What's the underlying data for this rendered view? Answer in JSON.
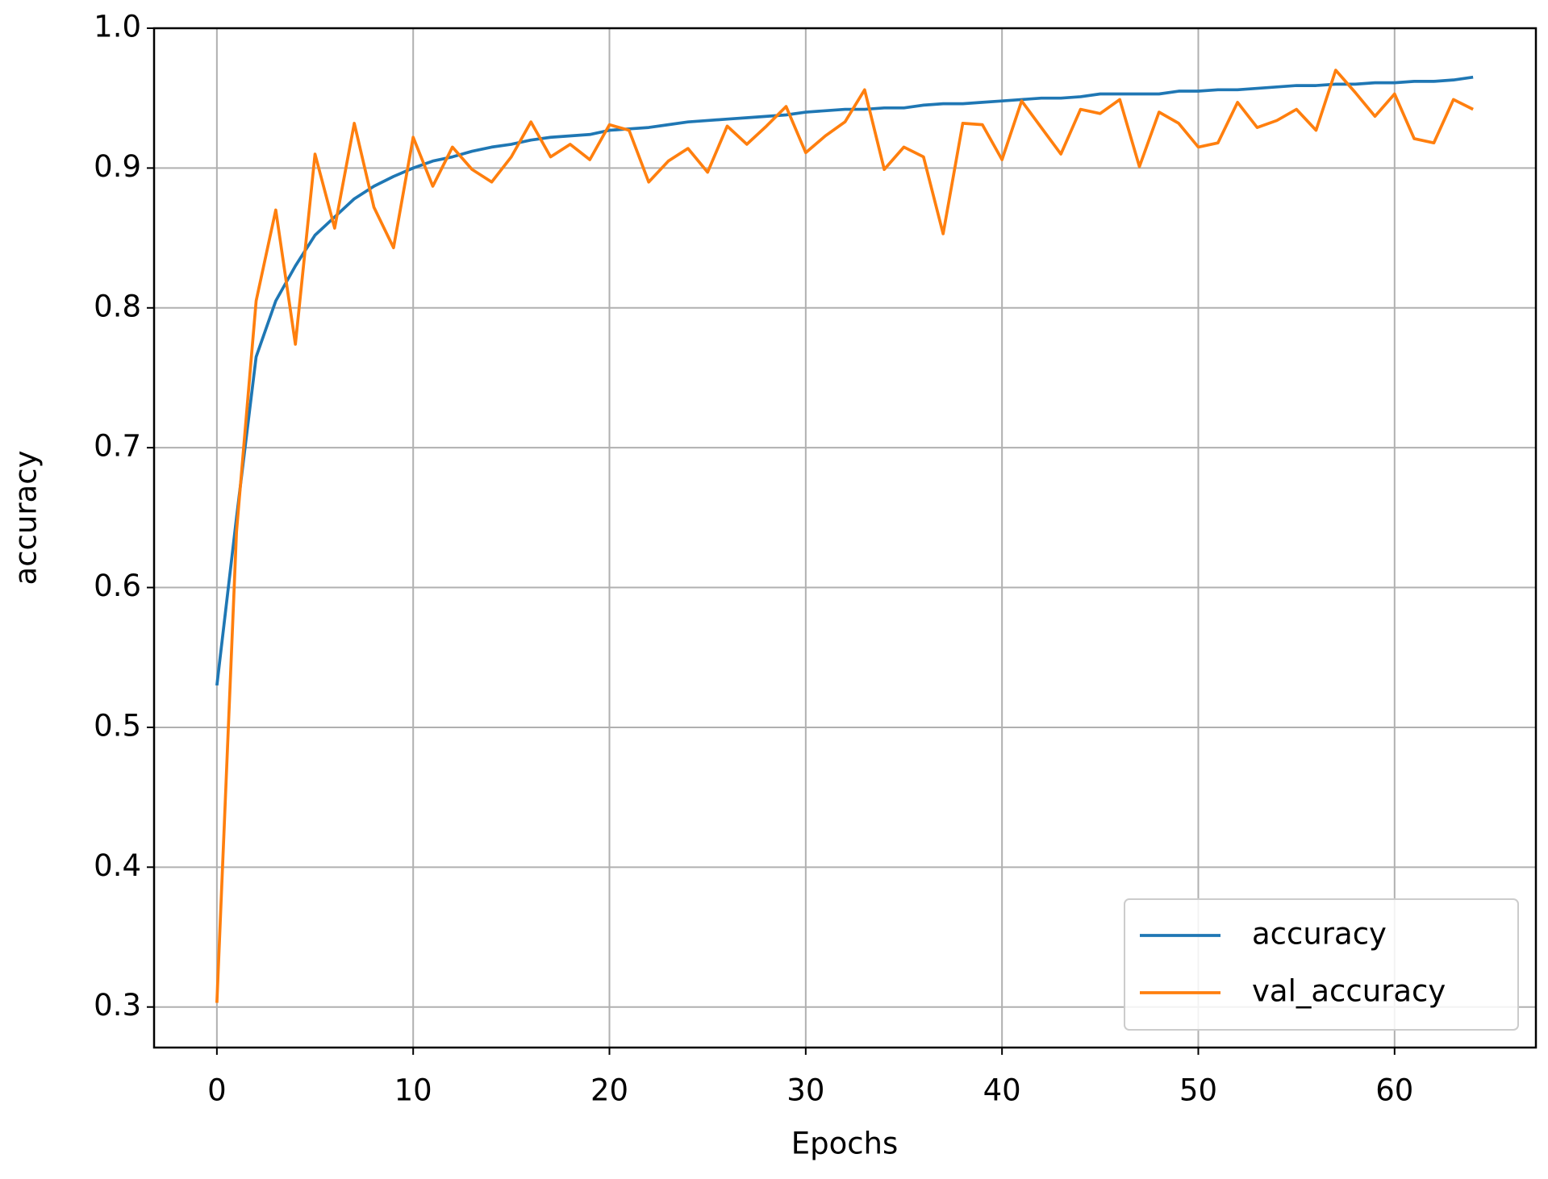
{
  "chart_data": {
    "type": "line",
    "x_label": "Epochs",
    "y_label": "accuracy",
    "x": [
      0,
      1,
      2,
      3,
      4,
      5,
      6,
      7,
      8,
      9,
      10,
      11,
      12,
      13,
      14,
      15,
      16,
      17,
      18,
      19,
      20,
      21,
      22,
      23,
      24,
      25,
      26,
      27,
      28,
      29,
      30,
      31,
      32,
      33,
      34,
      35,
      36,
      37,
      38,
      39,
      40,
      41,
      42,
      43,
      44,
      45,
      46,
      47,
      48,
      49,
      50,
      51,
      52,
      53,
      54,
      55,
      56,
      57,
      58,
      59,
      60,
      61,
      62,
      63,
      64
    ],
    "series": [
      {
        "name": "accuracy",
        "color": "#1f77b4",
        "values": [
          0.53,
          0.65,
          0.765,
          0.805,
          0.83,
          0.852,
          0.865,
          0.878,
          0.887,
          0.894,
          0.9,
          0.905,
          0.908,
          0.912,
          0.915,
          0.917,
          0.92,
          0.922,
          0.923,
          0.924,
          0.927,
          0.928,
          0.929,
          0.931,
          0.933,
          0.934,
          0.935,
          0.936,
          0.937,
          0.938,
          0.94,
          0.941,
          0.942,
          0.942,
          0.943,
          0.943,
          0.945,
          0.946,
          0.946,
          0.947,
          0.948,
          0.949,
          0.95,
          0.95,
          0.951,
          0.953,
          0.953,
          0.953,
          0.953,
          0.955,
          0.955,
          0.956,
          0.956,
          0.957,
          0.958,
          0.959,
          0.959,
          0.96,
          0.96,
          0.961,
          0.961,
          0.962,
          0.962,
          0.963,
          0.965
        ]
      },
      {
        "name": "val_accuracy",
        "color": "#ff7f0e",
        "values": [
          0.303,
          0.64,
          0.805,
          0.87,
          0.774,
          0.91,
          0.857,
          0.932,
          0.872,
          0.843,
          0.922,
          0.887,
          0.915,
          0.899,
          0.89,
          0.908,
          0.933,
          0.908,
          0.917,
          0.906,
          0.931,
          0.927,
          0.89,
          0.905,
          0.914,
          0.897,
          0.93,
          0.917,
          0.93,
          0.944,
          0.911,
          0.923,
          0.933,
          0.956,
          0.899,
          0.915,
          0.908,
          0.853,
          0.932,
          0.931,
          0.906,
          0.948,
          0.929,
          0.91,
          0.942,
          0.939,
          0.949,
          0.901,
          0.94,
          0.932,
          0.915,
          0.918,
          0.947,
          0.929,
          0.934,
          0.942,
          0.927,
          0.97,
          0.954,
          0.937,
          0.953,
          0.921,
          0.918,
          0.949,
          0.942
        ]
      }
    ],
    "xlim": [
      -3.2,
      67.2
    ],
    "xticks": [
      0,
      10,
      20,
      30,
      40,
      50,
      60
    ],
    "ylim": [
      0.271,
      1.0
    ],
    "yticks": [
      0.3,
      0.4,
      0.5,
      0.6,
      0.7,
      0.8,
      0.9,
      {
        "value": 1,
        "label": "1.0"
      }
    ],
    "grid": true,
    "legend": "lower right"
  }
}
